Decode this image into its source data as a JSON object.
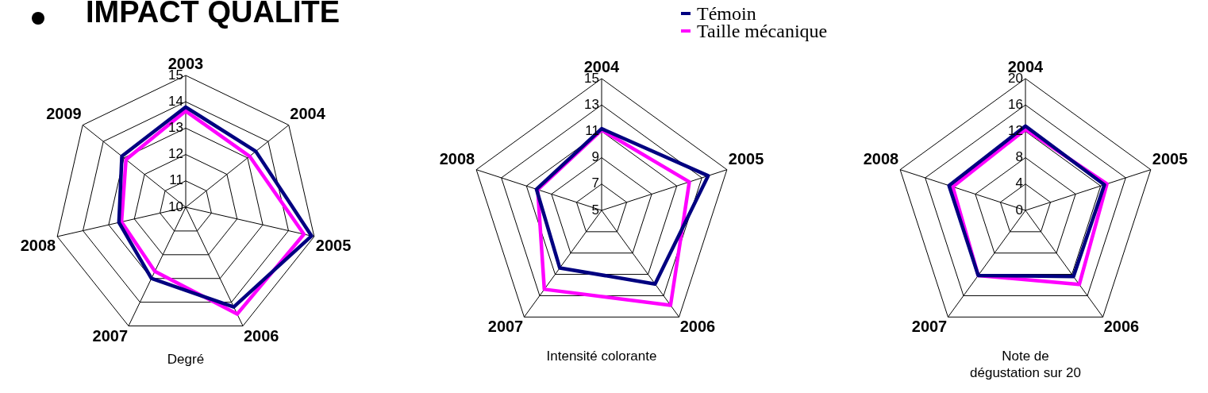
{
  "chart_data": [
    {
      "type": "radar",
      "title": "IMPACT QUALITE",
      "xlabel": "Degré",
      "categories": [
        "2003",
        "2004",
        "2005",
        "2006",
        "2007",
        "2008",
        "2009"
      ],
      "ylim": [
        10,
        15
      ],
      "yticks": [
        10,
        11,
        12,
        13,
        14,
        15
      ],
      "grid": true,
      "series": [
        {
          "color": "#000080",
          "values": [
            13.8,
            13.4,
            14.9,
            14.2,
            13.0,
            12.6,
            13.1
          ]
        },
        {
          "color": "#ff00ff",
          "values": [
            13.65,
            13.1,
            14.6,
            14.5,
            12.7,
            12.5,
            12.9
          ]
        }
      ]
    },
    {
      "type": "radar",
      "xlabel": "Intensité colorante",
      "categories": [
        "2004",
        "2005",
        "2006",
        "2007",
        "2008"
      ],
      "ylim": [
        5,
        15
      ],
      "yticks": [
        5,
        7,
        9,
        11,
        13,
        15
      ],
      "grid": true,
      "legend": "top right",
      "series": [
        {
          "name": "Témoin",
          "color": "#000080",
          "values": [
            11.2,
            13.5,
            11.9,
            10.4,
            10.2
          ]
        },
        {
          "name": "Taille mécanique",
          "color": "#ff00ff",
          "values": [
            11.1,
            12.0,
            13.9,
            12.4,
            10.1
          ]
        }
      ]
    },
    {
      "type": "radar",
      "xlabel": "Note de dégustation sur 20",
      "categories": [
        "2004",
        "2005",
        "2006",
        "2007",
        "2008"
      ],
      "ylim": [
        0,
        20
      ],
      "yticks": [
        0,
        4,
        8,
        12,
        16,
        20
      ],
      "grid": true,
      "series": [
        {
          "color": "#000080",
          "values": [
            12.8,
            12.6,
            12.4,
            12.2,
            12.2
          ]
        },
        {
          "color": "#ff00ff",
          "values": [
            12.3,
            13.0,
            13.9,
            12.2,
            11.6
          ]
        }
      ]
    }
  ]
}
